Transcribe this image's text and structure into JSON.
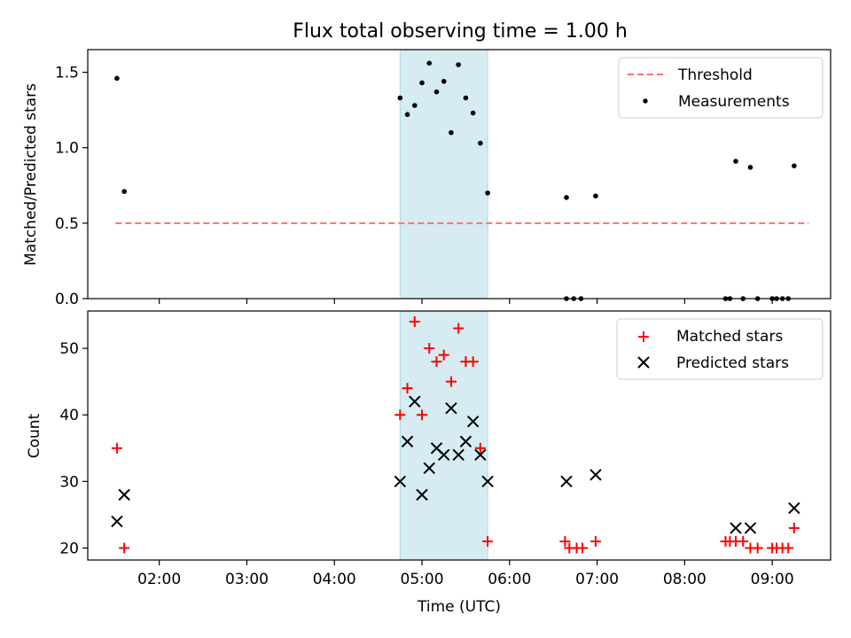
{
  "title": "Flux total observing time = 1.00 h",
  "colors": {
    "highlight": "#add8e6",
    "threshold": "#ff6f6f",
    "measurement": "#000000",
    "matched": "#ff0000",
    "predicted": "#000000"
  },
  "chart_data": [
    {
      "type": "scatter",
      "ylabel": "Matched/Predicted stars",
      "ylim": [
        0,
        1.65
      ],
      "yticks": [
        0.0,
        0.5,
        1.0,
        1.5
      ],
      "ytick_labels": [
        "0.0",
        "0.5",
        "1.0",
        "1.5"
      ],
      "xlim": [
        "01:11",
        "09:40"
      ],
      "highlight_span": [
        "04:45",
        "05:45"
      ],
      "legend_position": "upper right",
      "threshold": {
        "name": "Threshold",
        "y": 0.5,
        "x_range": [
          "01:30",
          "09:25"
        ]
      },
      "series": [
        {
          "name": "Measurements",
          "points": [
            [
              "01:31",
              1.46
            ],
            [
              "01:36",
              0.71
            ],
            [
              "04:45",
              1.33
            ],
            [
              "04:50",
              1.22
            ],
            [
              "04:55",
              1.28
            ],
            [
              "05:00",
              1.43
            ],
            [
              "05:05",
              1.56
            ],
            [
              "05:10",
              1.37
            ],
            [
              "05:15",
              1.44
            ],
            [
              "05:20",
              1.1
            ],
            [
              "05:25",
              1.55
            ],
            [
              "05:30",
              1.33
            ],
            [
              "05:35",
              1.23
            ],
            [
              "05:40",
              1.03
            ],
            [
              "05:45",
              0.7
            ],
            [
              "06:39",
              0.67
            ],
            [
              "06:39",
              0.0
            ],
            [
              "06:44",
              0.0
            ],
            [
              "06:49",
              0.0
            ],
            [
              "06:59",
              0.68
            ],
            [
              "08:28",
              0.0
            ],
            [
              "08:31",
              0.0
            ],
            [
              "08:35",
              0.91
            ],
            [
              "08:40",
              0.0
            ],
            [
              "08:45",
              0.87
            ],
            [
              "08:50",
              0.0
            ],
            [
              "09:00",
              0.0
            ],
            [
              "09:03",
              0.0
            ],
            [
              "09:07",
              0.0
            ],
            [
              "09:11",
              0.0
            ],
            [
              "09:15",
              0.88
            ]
          ]
        }
      ]
    },
    {
      "type": "scatter",
      "xlabel": "Time (UTC)",
      "ylabel": "Count",
      "ylim": [
        18.2,
        55.6
      ],
      "yticks": [
        20,
        30,
        40,
        50
      ],
      "ytick_labels": [
        "20",
        "30",
        "40",
        "50"
      ],
      "xlim": [
        "01:11",
        "09:40"
      ],
      "xticks": [
        "02:00",
        "03:00",
        "04:00",
        "05:00",
        "06:00",
        "07:00",
        "08:00",
        "09:00"
      ],
      "highlight_span": [
        "04:45",
        "05:45"
      ],
      "legend_position": "upper right",
      "series": [
        {
          "name": "Matched stars",
          "marker": "plus",
          "points": [
            [
              "01:31",
              35
            ],
            [
              "01:36",
              20
            ],
            [
              "04:45",
              40
            ],
            [
              "04:50",
              44
            ],
            [
              "04:55",
              54
            ],
            [
              "05:00",
              40
            ],
            [
              "05:05",
              50
            ],
            [
              "05:10",
              48
            ],
            [
              "05:15",
              49
            ],
            [
              "05:20",
              45
            ],
            [
              "05:25",
              53
            ],
            [
              "05:30",
              48
            ],
            [
              "05:35",
              48
            ],
            [
              "05:40",
              35
            ],
            [
              "05:45",
              21
            ],
            [
              "06:38",
              21
            ],
            [
              "06:41",
              20
            ],
            [
              "06:46",
              20
            ],
            [
              "06:50",
              20
            ],
            [
              "06:59",
              21
            ],
            [
              "08:28",
              21
            ],
            [
              "08:31",
              21
            ],
            [
              "08:35",
              21
            ],
            [
              "08:40",
              21
            ],
            [
              "08:45",
              20
            ],
            [
              "08:50",
              20
            ],
            [
              "09:00",
              20
            ],
            [
              "09:03",
              20
            ],
            [
              "09:07",
              20
            ],
            [
              "09:11",
              20
            ],
            [
              "09:15",
              23
            ]
          ]
        },
        {
          "name": "Predicted stars",
          "marker": "x",
          "points": [
            [
              "01:31",
              24
            ],
            [
              "01:36",
              28
            ],
            [
              "04:45",
              30
            ],
            [
              "04:50",
              36
            ],
            [
              "04:55",
              42
            ],
            [
              "05:00",
              28
            ],
            [
              "05:05",
              32
            ],
            [
              "05:10",
              35
            ],
            [
              "05:15",
              34
            ],
            [
              "05:20",
              41
            ],
            [
              "05:25",
              34
            ],
            [
              "05:30",
              36
            ],
            [
              "05:35",
              39
            ],
            [
              "05:40",
              34
            ],
            [
              "05:45",
              30
            ],
            [
              "06:39",
              30
            ],
            [
              "06:59",
              31
            ],
            [
              "08:35",
              23
            ],
            [
              "08:45",
              23
            ],
            [
              "09:15",
              26
            ]
          ]
        }
      ]
    }
  ]
}
